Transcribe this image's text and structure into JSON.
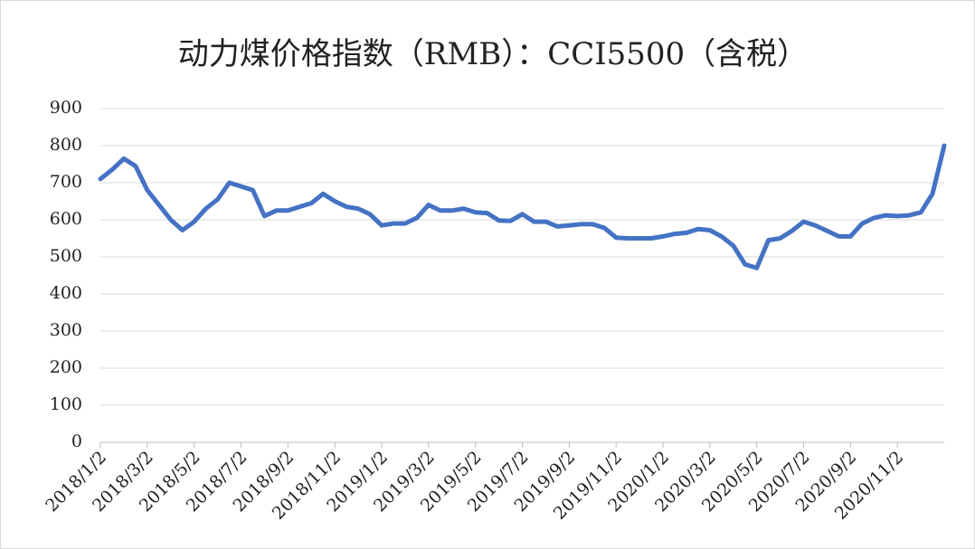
{
  "chart_data": {
    "type": "line",
    "title": "动力煤价格指数（RMB）：CCI5500（含税）",
    "categories": [
      "2018/1/2",
      null,
      null,
      null,
      "2018/3/2",
      null,
      null,
      null,
      "2018/5/2",
      null,
      null,
      null,
      "2018/7/2",
      null,
      null,
      null,
      "2018/9/2",
      null,
      null,
      null,
      "2018/11/2",
      null,
      null,
      null,
      "2019/1/2",
      null,
      null,
      null,
      "2019/3/2",
      null,
      null,
      null,
      "2019/5/2",
      null,
      null,
      null,
      "2019/7/2",
      null,
      null,
      null,
      "2019/9/2",
      null,
      null,
      null,
      "2019/11/2",
      null,
      null,
      null,
      "2020/1/2",
      null,
      null,
      null,
      "2020/3/2",
      null,
      null,
      null,
      "2020/5/2",
      null,
      null,
      null,
      "2020/7/2",
      null,
      null,
      null,
      "2020/9/2",
      null,
      null,
      null,
      "2020/11/2",
      null,
      null,
      null,
      null
    ],
    "series": [
      {
        "name": "CCI5500",
        "color": "#4472c4",
        "values": [
          710,
          735,
          765,
          745,
          680,
          640,
          600,
          572,
          595,
          630,
          655,
          700,
          690,
          680,
          610,
          625,
          625,
          635,
          645,
          670,
          650,
          635,
          630,
          615,
          585,
          590,
          590,
          605,
          640,
          625,
          625,
          630,
          620,
          618,
          598,
          597,
          615,
          595,
          595,
          582,
          585,
          588,
          588,
          578,
          552,
          550,
          550,
          550,
          555,
          562,
          565,
          575,
          572,
          555,
          530,
          480,
          470,
          545,
          550,
          570,
          595,
          585,
          570,
          555,
          555,
          590,
          605,
          612,
          610,
          612,
          620,
          670,
          800
        ]
      }
    ],
    "ylim": [
      0,
      900
    ],
    "yticks": [
      0,
      100,
      200,
      300,
      400,
      500,
      600,
      700,
      800,
      900
    ],
    "grid": true
  }
}
